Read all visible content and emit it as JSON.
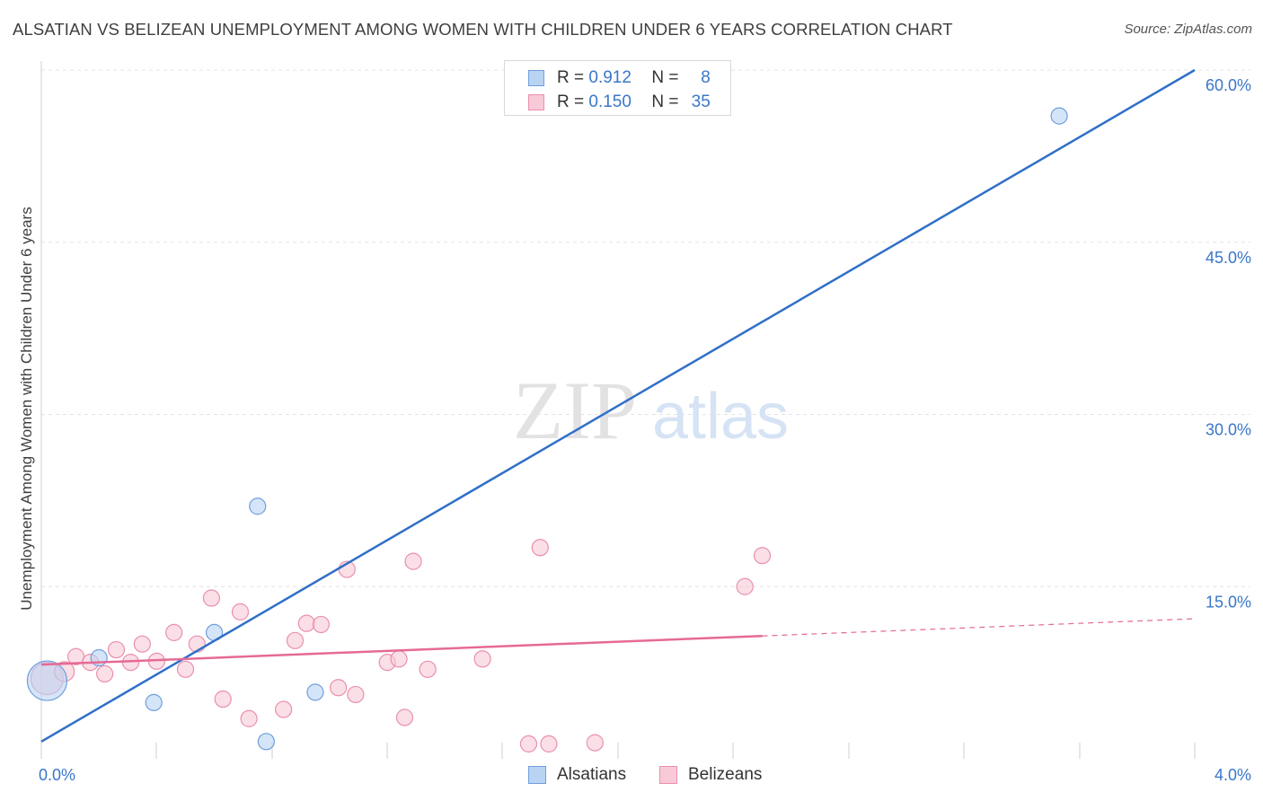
{
  "title": "ALSATIAN VS BELIZEAN UNEMPLOYMENT AMONG WOMEN WITH CHILDREN UNDER 6 YEARS CORRELATION CHART",
  "source": "Source: ZipAtlas.com",
  "watermark": {
    "zip": "ZIP",
    "atlas": "atlas"
  },
  "legend": {
    "rows": [
      {
        "r_label": "R =",
        "r_value": "0.912",
        "n_label": "N =",
        "n_value": "8"
      },
      {
        "r_label": "R =",
        "r_value": "0.150",
        "n_label": "N =",
        "n_value": "35"
      }
    ]
  },
  "colors": {
    "alsatians_fill": "#b9d3f3",
    "alsatians_stroke": "#6f9fdc",
    "alsatians_line": "#2f6fc8",
    "belizeans_fill": "#f8c9d7",
    "belizeans_stroke": "#e98fae",
    "belizeans_line": "#e56a95",
    "axis_text": "#3a76c9",
    "grid": "#e3e3e3"
  },
  "chart_data": {
    "type": "scatter",
    "title": "ALSATIAN VS BELIZEAN UNEMPLOYMENT AMONG WOMEN WITH CHILDREN UNDER 6 YEARS CORRELATION CHART",
    "xlabel": "",
    "ylabel": "Unemployment Among Women with Children Under 6 years",
    "xlim": [
      0.0,
      4.0
    ],
    "ylim": [
      0.0,
      60.0
    ],
    "x_tick_labels": [
      "0.0%",
      "4.0%"
    ],
    "y_ticks": [
      15,
      30,
      45,
      60
    ],
    "y_tick_labels": [
      "15.0%",
      "30.0%",
      "45.0%",
      "60.0%"
    ],
    "grid": true,
    "legend_position": "top-center",
    "series": [
      {
        "name": "Alsatians",
        "r": 0.912,
        "n": 8,
        "points": [
          {
            "x": 0.02,
            "y": 6.8,
            "size": 22
          },
          {
            "x": 0.2,
            "y": 8.8,
            "size": 9
          },
          {
            "x": 0.39,
            "y": 4.9,
            "size": 9
          },
          {
            "x": 0.6,
            "y": 11.0,
            "size": 9
          },
          {
            "x": 0.75,
            "y": 22.0,
            "size": 9
          },
          {
            "x": 0.78,
            "y": 1.5,
            "size": 9
          },
          {
            "x": 0.95,
            "y": 5.8,
            "size": 9
          },
          {
            "x": 3.53,
            "y": 56.0,
            "size": 9
          }
        ],
        "trend": {
          "x": [
            0.0,
            4.0
          ],
          "y": [
            1.5,
            60.0
          ]
        }
      },
      {
        "name": "Belizeans",
        "r": 0.15,
        "n": 35,
        "points": [
          {
            "x": 0.02,
            "y": 7.0,
            "size": 18
          },
          {
            "x": 0.08,
            "y": 7.6,
            "size": 11
          },
          {
            "x": 0.12,
            "y": 8.9,
            "size": 9
          },
          {
            "x": 0.17,
            "y": 8.4,
            "size": 9
          },
          {
            "x": 0.22,
            "y": 7.4,
            "size": 9
          },
          {
            "x": 0.26,
            "y": 9.5,
            "size": 9
          },
          {
            "x": 0.31,
            "y": 8.4,
            "size": 9
          },
          {
            "x": 0.35,
            "y": 10.0,
            "size": 9
          },
          {
            "x": 0.4,
            "y": 8.5,
            "size": 9
          },
          {
            "x": 0.46,
            "y": 11.0,
            "size": 9
          },
          {
            "x": 0.5,
            "y": 7.8,
            "size": 9
          },
          {
            "x": 0.54,
            "y": 10.0,
            "size": 9
          },
          {
            "x": 0.59,
            "y": 14.0,
            "size": 9
          },
          {
            "x": 0.63,
            "y": 5.2,
            "size": 9
          },
          {
            "x": 0.69,
            "y": 12.8,
            "size": 9
          },
          {
            "x": 0.72,
            "y": 3.5,
            "size": 9
          },
          {
            "x": 0.84,
            "y": 4.3,
            "size": 9
          },
          {
            "x": 0.88,
            "y": 10.3,
            "size": 9
          },
          {
            "x": 0.92,
            "y": 11.8,
            "size": 9
          },
          {
            "x": 0.97,
            "y": 11.7,
            "size": 9
          },
          {
            "x": 1.03,
            "y": 6.2,
            "size": 9
          },
          {
            "x": 1.06,
            "y": 16.5,
            "size": 9
          },
          {
            "x": 1.09,
            "y": 5.6,
            "size": 9
          },
          {
            "x": 1.2,
            "y": 8.4,
            "size": 9
          },
          {
            "x": 1.24,
            "y": 8.7,
            "size": 9
          },
          {
            "x": 1.26,
            "y": 3.6,
            "size": 9
          },
          {
            "x": 1.29,
            "y": 17.2,
            "size": 9
          },
          {
            "x": 1.34,
            "y": 7.8,
            "size": 9
          },
          {
            "x": 1.53,
            "y": 8.7,
            "size": 9
          },
          {
            "x": 1.69,
            "y": 1.3,
            "size": 9
          },
          {
            "x": 1.73,
            "y": 18.4,
            "size": 9
          },
          {
            "x": 1.76,
            "y": 1.3,
            "size": 9
          },
          {
            "x": 1.92,
            "y": 1.4,
            "size": 9
          },
          {
            "x": 2.44,
            "y": 15.0,
            "size": 9
          },
          {
            "x": 2.5,
            "y": 17.7,
            "size": 9
          }
        ],
        "trend": {
          "x": [
            0.0,
            2.5
          ],
          "y": [
            8.2,
            10.7
          ]
        },
        "trend_dashed": {
          "x": [
            2.5,
            4.0
          ],
          "y": [
            10.7,
            12.2
          ]
        }
      }
    ]
  },
  "bottom_legend": [
    {
      "label": "Alsatians"
    },
    {
      "label": "Belizeans"
    }
  ]
}
